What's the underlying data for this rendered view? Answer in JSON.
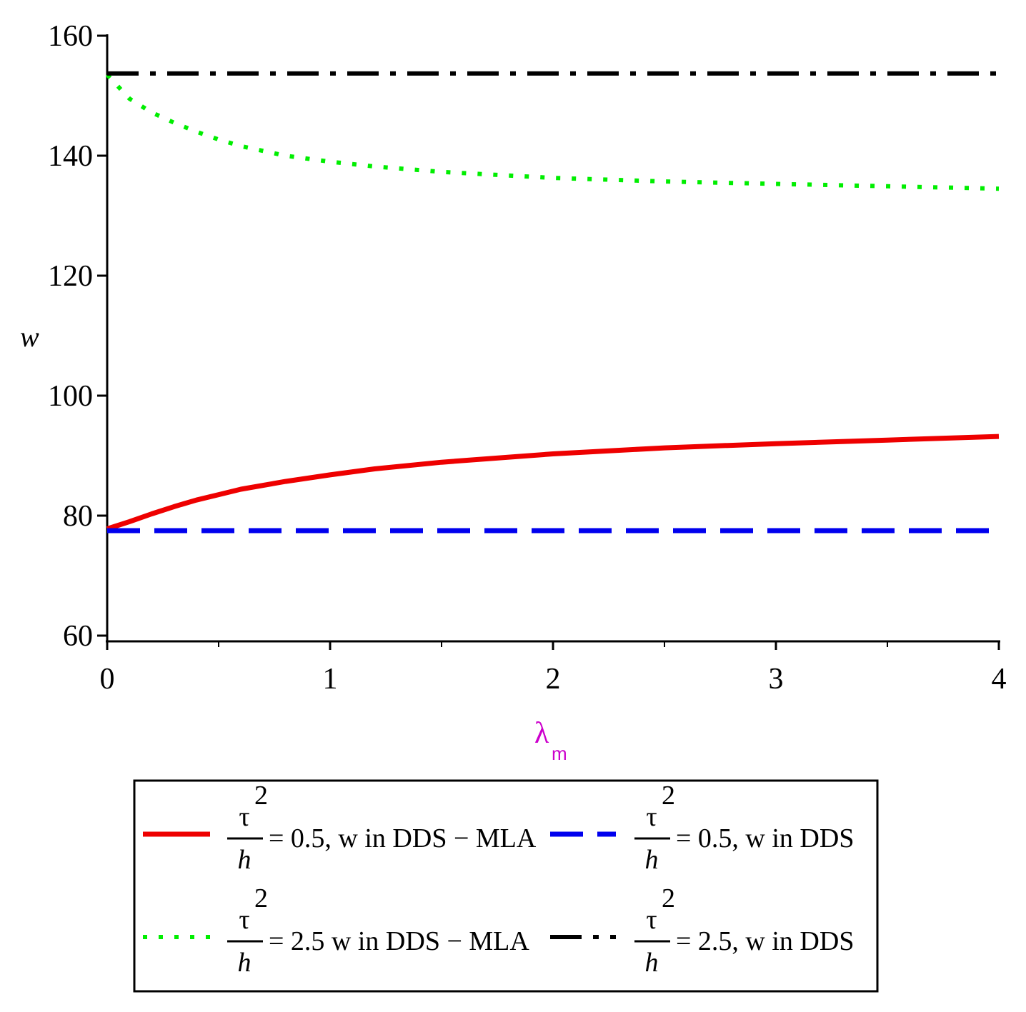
{
  "chart_data": {
    "type": "line",
    "title": "",
    "xlabel": "λ",
    "xlabel_sub": "m",
    "ylabel": "w",
    "xlim": [
      0,
      4
    ],
    "ylim": [
      60,
      160
    ],
    "xticks": [
      0,
      1,
      2,
      3,
      4
    ],
    "xticks_minor": [
      0.5,
      1.5,
      2.5,
      3.5
    ],
    "yticks": [
      60,
      80,
      100,
      120,
      140,
      160
    ],
    "grid": false,
    "legend_position": "bottom",
    "series": [
      {
        "name": "τ²/h = 0.5, w in DDS − MLA",
        "color": "#ee0000",
        "style": "solid",
        "x": [
          0,
          0.1,
          0.2,
          0.3,
          0.4,
          0.5,
          0.6,
          0.8,
          1.0,
          1.2,
          1.5,
          2.0,
          2.5,
          3.0,
          3.5,
          4.0
        ],
        "y": [
          77.8,
          79.0,
          80.3,
          81.5,
          82.6,
          83.5,
          84.4,
          85.7,
          86.8,
          87.8,
          88.9,
          90.3,
          91.3,
          92.0,
          92.6,
          93.2
        ]
      },
      {
        "name": "τ²/h = 0.5, w in DDS",
        "color": "#0000ee",
        "style": "dashed",
        "x": [
          0,
          4
        ],
        "y": [
          77.5,
          77.5
        ]
      },
      {
        "name": "τ²/h = 2.5 w in DDS − MLA",
        "color": "#00ee00",
        "style": "dotted",
        "x": [
          0,
          0.1,
          0.2,
          0.3,
          0.4,
          0.5,
          0.6,
          0.8,
          1.0,
          1.2,
          1.5,
          2.0,
          2.5,
          3.0,
          3.5,
          4.0
        ],
        "y": [
          153.5,
          149.5,
          147.2,
          145.5,
          144.0,
          142.7,
          141.6,
          140.0,
          139.0,
          138.2,
          137.3,
          136.3,
          135.7,
          135.3,
          134.9,
          134.5
        ]
      },
      {
        "name": "τ²/h = 2.5, w in DDS",
        "color": "#000000",
        "style": "dashdot",
        "x": [
          0,
          4
        ],
        "y": [
          153.7,
          153.7
        ]
      }
    ],
    "legend_entries": [
      {
        "frac_num": "τ",
        "frac_sup": "2",
        "frac_den": "h",
        "rest": "= 0.5, w in DDS − MLA"
      },
      {
        "frac_num": "τ",
        "frac_sup": "2",
        "frac_den": "h",
        "rest": "= 0.5, w in DDS"
      },
      {
        "frac_num": "τ",
        "frac_sup": "2",
        "frac_den": "h",
        "rest": "= 2.5 w in DDS − MLA"
      },
      {
        "frac_num": "τ",
        "frac_sup": "2",
        "frac_den": "h",
        "rest": "= 2.5, w in DDS"
      }
    ]
  }
}
